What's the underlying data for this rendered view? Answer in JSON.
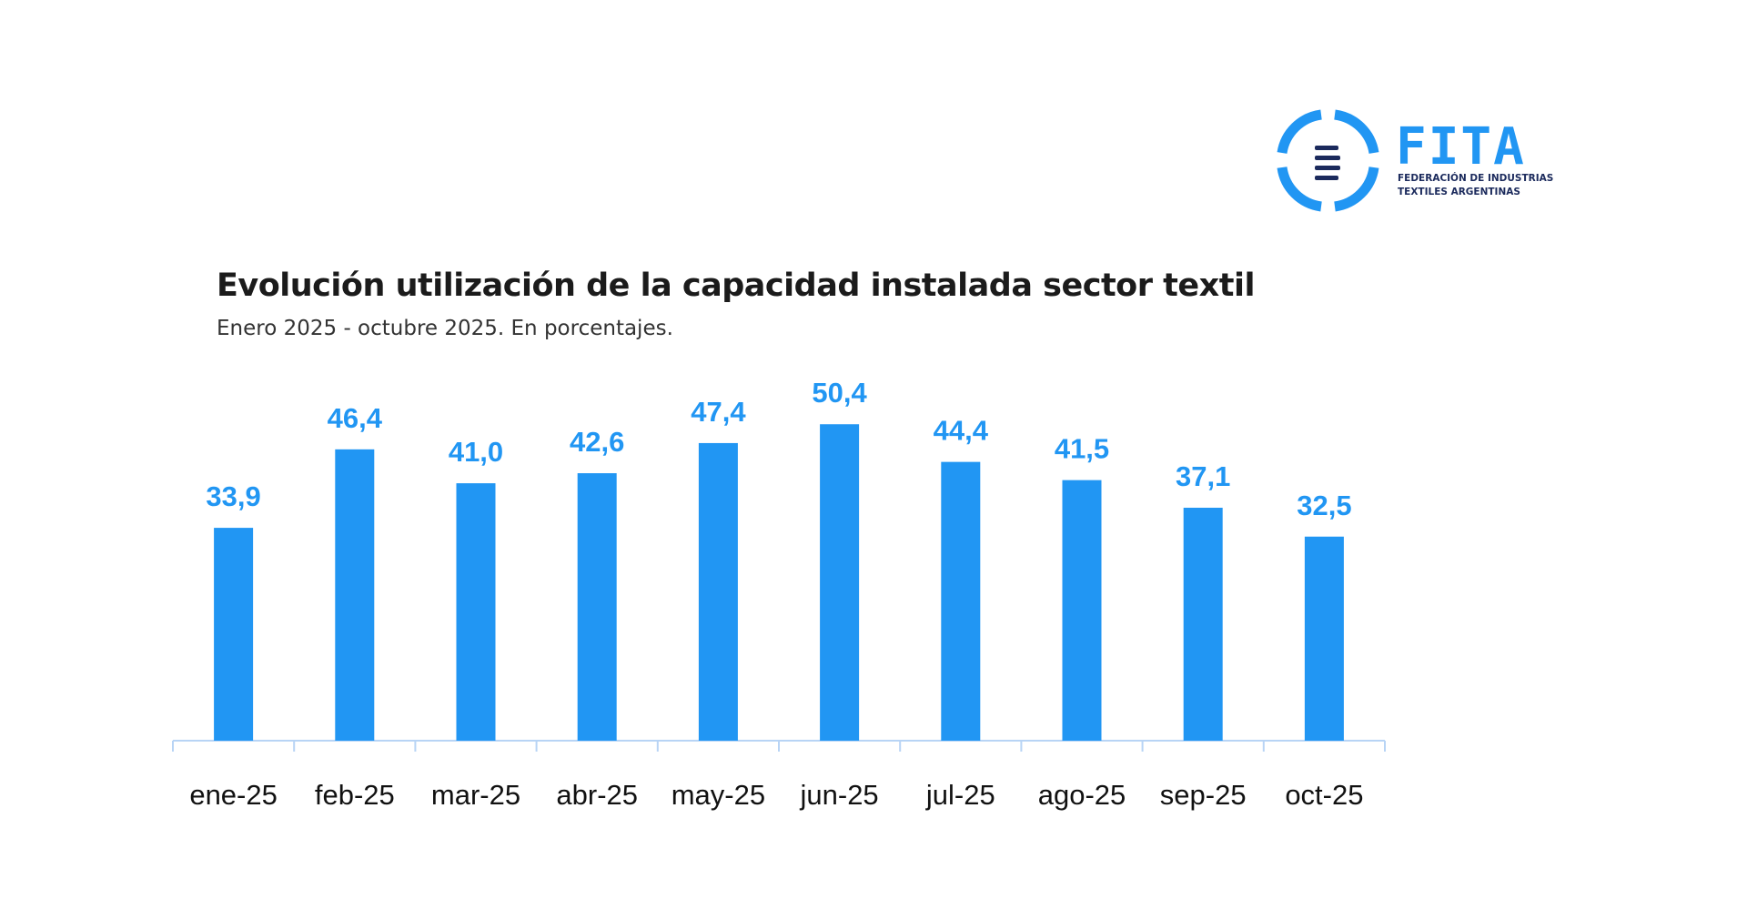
{
  "logo": {
    "name": "FITA",
    "line1": "FEDERACIÓN DE INDUSTRIAS",
    "line2": "TEXTILES ARGENTINAS",
    "accent": "#2196F3",
    "dark": "#1B2A5C"
  },
  "chart_data": {
    "type": "bar",
    "title": "Evolución utilización de la capacidad instalada sector textil",
    "subtitle": "Enero 2025 - octubre 2025. En porcentajes.",
    "categories": [
      "ene-25",
      "feb-25",
      "mar-25",
      "abr-25",
      "may-25",
      "jun-25",
      "jul-25",
      "ago-25",
      "sep-25",
      "oct-25"
    ],
    "values": [
      33.9,
      46.4,
      41.0,
      42.6,
      47.4,
      50.4,
      44.4,
      41.5,
      37.1,
      32.5
    ],
    "data_labels": [
      "33,9",
      "46,4",
      "41,0",
      "42,6",
      "47,4",
      "50,4",
      "44,4",
      "41,5",
      "37,1",
      "32,5"
    ],
    "xlabel": "",
    "ylabel": "",
    "ylim": [
      0,
      60
    ],
    "grid": false,
    "legend": "none",
    "bar_color": "#2196F3",
    "label_color": "#2196F3",
    "axis_color": "#B8D4F5"
  }
}
